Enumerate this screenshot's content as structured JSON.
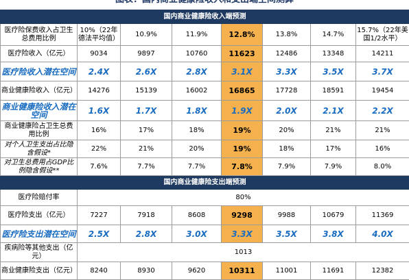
{
  "title": "图表：国内商业健康险收入和支出端空间测算",
  "sections": [
    {
      "header": "国内商业健康险收入端预测",
      "rows": [
        [
          "医疗险保费收入占卫生总费用比例",
          "10%（22年德法平均值）",
          "10.9%",
          "11.9%",
          "12.8%",
          "13.8%",
          "14.7%",
          "15.7%（22年美国1/2水平）"
        ],
        [
          "医疗险收入（亿元）",
          "9034",
          "9897",
          "10760",
          "11623",
          "12486",
          "13348",
          "14211"
        ],
        [
          "医疗险收入潜在空间",
          "2.4X",
          "2.6X",
          "2.8X",
          "3.1X",
          "3.3X",
          "3.5X",
          "3.7X"
        ],
        [
          "商业健康险收入（亿元）",
          "14276",
          "15139",
          "16002",
          "16865",
          "17728",
          "18591",
          "19454"
        ],
        [
          "商业健康险收入潜在空间",
          "1.6X",
          "1.7X",
          "1.8X",
          "1.9X",
          "2.0X",
          "2.1X",
          "2.2X"
        ],
        [
          "商业健康险占卫生总费用比例",
          "16%",
          "17%",
          "18%",
          "19%",
          "20%",
          "21%",
          "21%"
        ],
        [
          "对个人卫生支出占比隐含假设*",
          "22%",
          "21%",
          "20%",
          "19%",
          "18%",
          "17%",
          "16%"
        ],
        [
          "对卫生总费用占GDP比例隐含假设**",
          "7.6%",
          "7.7%",
          "7.7%",
          "7.8%",
          "7.9%",
          "7.9%",
          "8.0%"
        ]
      ]
    },
    {
      "header": "国内商业健康险支出端预测",
      "rows": [
        [
          "医疗险赔付率",
          "80%"
        ],
        [
          "医疗险支出（亿元）",
          "7227",
          "7918",
          "8608",
          "9298",
          "9988",
          "10679",
          "11369"
        ],
        [
          "医疗险支出潜在空间",
          "2.5X",
          "2.8X",
          "3.0X",
          "3.3X",
          "3.5X",
          "3.8X",
          "4.0X"
        ],
        [
          "疾病险等其他支出（亿元）",
          "1013"
        ],
        [
          "商业健康险支出（亿元）",
          "8240",
          "8930",
          "9620",
          "10311",
          "11001",
          "11691",
          "12382"
        ]
      ]
    }
  ]
}
